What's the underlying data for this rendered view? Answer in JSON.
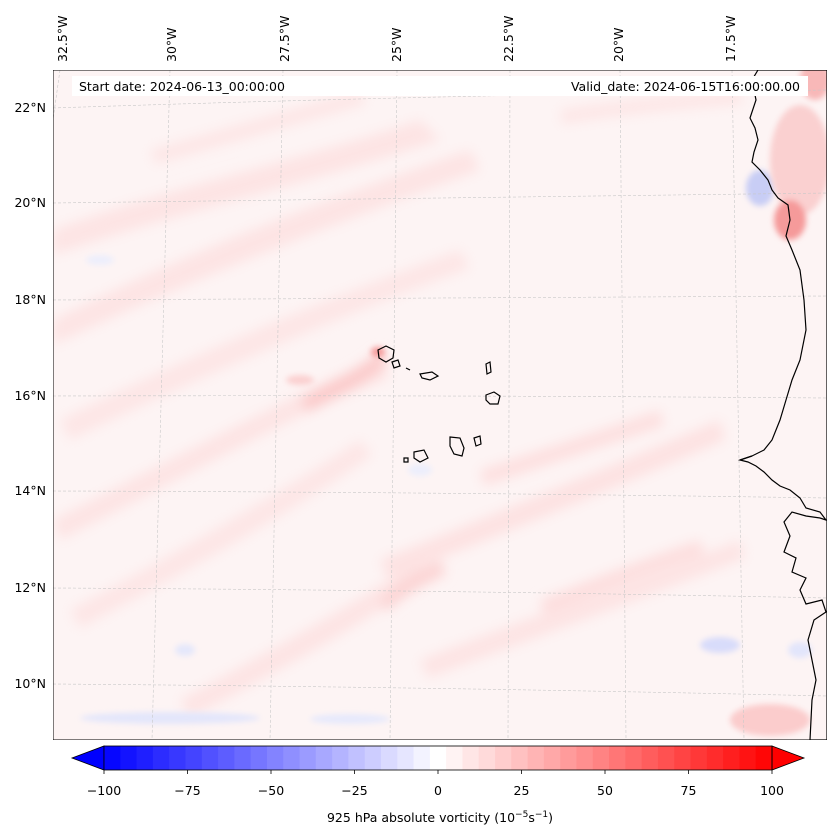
{
  "map": {
    "start_date": "Start date: 2024-06-13_00:00:00",
    "valid_date": "Valid_date: 2024-06-15T16:00:00.00",
    "lon_labels": [
      "32.5°W",
      "30°W",
      "27.5°W",
      "25°W",
      "22.5°W",
      "20°W",
      "17.5°W"
    ],
    "lat_labels": [
      "22°N",
      "20°N",
      "18°N",
      "16°N",
      "14°N",
      "12°N",
      "10°N"
    ],
    "field_colors": {
      "background": "#fdf4f4",
      "light_red": "#fde4e4",
      "mid_red": "#fbcaca",
      "strong_red": "#f59a9a",
      "light_blue": "#eef0fd",
      "coast": "#000000",
      "grid": "#c8c8c8"
    }
  },
  "colorbar": {
    "ticks": [
      "−100",
      "−75",
      "−50",
      "−25",
      "0",
      "25",
      "50",
      "75",
      "100"
    ],
    "label": "925 hPa absolute vorticity (10",
    "label_exp1": "−5",
    "label_mid": "s",
    "label_exp2": "−1",
    "label_end": ")",
    "vmin": -100,
    "vmax": 100,
    "n_levels": 41,
    "color_min": "#0000ff",
    "color_mid": "#ffffff",
    "color_max": "#ff0000"
  }
}
